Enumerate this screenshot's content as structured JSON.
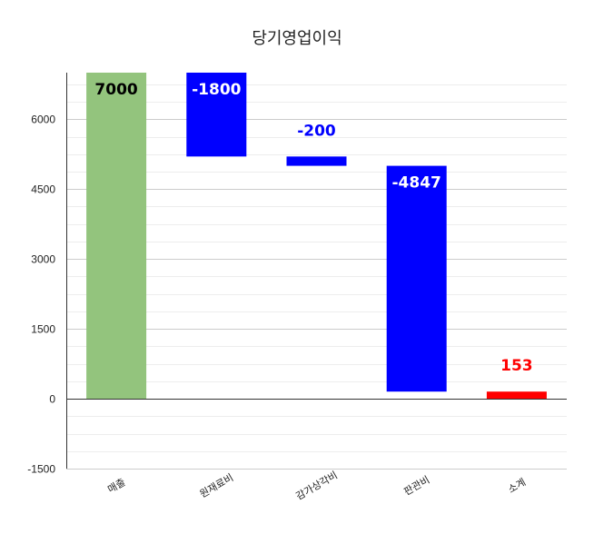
{
  "chart_data": {
    "type": "waterfall",
    "title": "당기영업이익",
    "categories": [
      "매출",
      "원재료비",
      "감가상각비",
      "판관비",
      "소계"
    ],
    "values": [
      7000,
      -1800,
      -200,
      -4847,
      153
    ],
    "data_labels": [
      "7000",
      "-1800",
      "-200",
      "-4847",
      "153"
    ],
    "bar_colors": [
      "#93c47d",
      "#0000ff",
      "#0000ff",
      "#0000ff",
      "#ff0000"
    ],
    "label_colors": [
      "#000000",
      "#ffffff",
      "#0000ff",
      "#ffffff",
      "#ff0000"
    ],
    "ylim": [
      -1500,
      7000
    ],
    "yticks": [
      -1500,
      0,
      1500,
      3000,
      4500,
      6000
    ],
    "ytick_labels": [
      "-1500",
      "0",
      "1500",
      "3000",
      "4500",
      "6000"
    ],
    "minor_grid_step": 375,
    "grid": true,
    "legend": "none",
    "xlabel": "",
    "ylabel": ""
  }
}
